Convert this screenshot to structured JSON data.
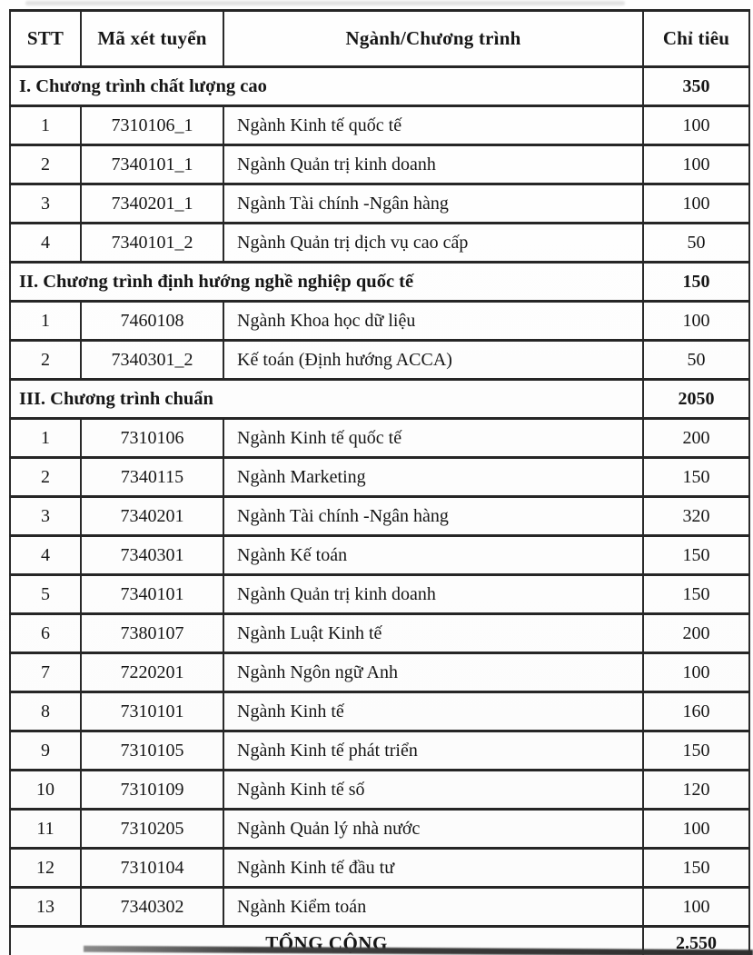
{
  "table": {
    "columns": [
      "STT",
      "Mã xét tuyển",
      "Ngành/Chương trình",
      "Chỉ tiêu"
    ],
    "sections": [
      {
        "title": "I. Chương trình chất lượng cao",
        "quota": "350",
        "rows": [
          {
            "stt": "1",
            "code": "7310106_1",
            "name": "Ngành Kinh tế quốc tế",
            "quota": "100"
          },
          {
            "stt": "2",
            "code": "7340101_1",
            "name": "Ngành Quản trị kinh doanh",
            "quota": "100"
          },
          {
            "stt": "3",
            "code": "7340201_1",
            "name": "Ngành Tài chính -Ngân hàng",
            "quota": "100"
          },
          {
            "stt": "4",
            "code": "7340101_2",
            "name": "Ngành Quản trị dịch vụ cao cấp",
            "quota": "50"
          }
        ]
      },
      {
        "title": "II. Chương trình định hướng nghề nghiệp quốc tế",
        "quota": "150",
        "rows": [
          {
            "stt": "1",
            "code": "7460108",
            "name": "Ngành Khoa học dữ liệu",
            "quota": "100"
          },
          {
            "stt": "2",
            "code": "7340301_2",
            "name": "Kế toán (Định hướng ACCA)",
            "quota": "50"
          }
        ]
      },
      {
        "title": "III. Chương trình chuẩn",
        "quota": "2050",
        "rows": [
          {
            "stt": "1",
            "code": "7310106",
            "name": "Ngành Kinh tế quốc tế",
            "quota": "200"
          },
          {
            "stt": "2",
            "code": "7340115",
            "name": "Ngành Marketing",
            "quota": "150"
          },
          {
            "stt": "3",
            "code": "7340201",
            "name": "Ngành Tài chính -Ngân hàng",
            "quota": "320"
          },
          {
            "stt": "4",
            "code": "7340301",
            "name": "Ngành Kế toán",
            "quota": "150"
          },
          {
            "stt": "5",
            "code": "7340101",
            "name": "Ngành Quản trị kinh doanh",
            "quota": "150"
          },
          {
            "stt": "6",
            "code": "7380107",
            "name": "Ngành Luật Kinh tế",
            "quota": "200"
          },
          {
            "stt": "7",
            "code": "7220201",
            "name": "Ngành Ngôn ngữ Anh",
            "quota": "100"
          },
          {
            "stt": "8",
            "code": "7310101",
            "name": "Ngành Kinh tế",
            "quota": "160"
          },
          {
            "stt": "9",
            "code": "7310105",
            "name": "Ngành Kinh tế phát triển",
            "quota": "150"
          },
          {
            "stt": "10",
            "code": "7310109",
            "name": "Ngành Kinh tế số",
            "quota": "120"
          },
          {
            "stt": "11",
            "code": "7310205",
            "name": "Ngành Quản lý nhà nước",
            "quota": "100"
          },
          {
            "stt": "12",
            "code": "7310104",
            "name": "Ngành Kinh tế đầu tư",
            "quota": "150"
          },
          {
            "stt": "13",
            "code": "7340302",
            "name": "Ngành Kiểm toán",
            "quota": "100"
          }
        ]
      }
    ],
    "total_label": "TỔNG CỘNG",
    "total_value": "2.550"
  }
}
